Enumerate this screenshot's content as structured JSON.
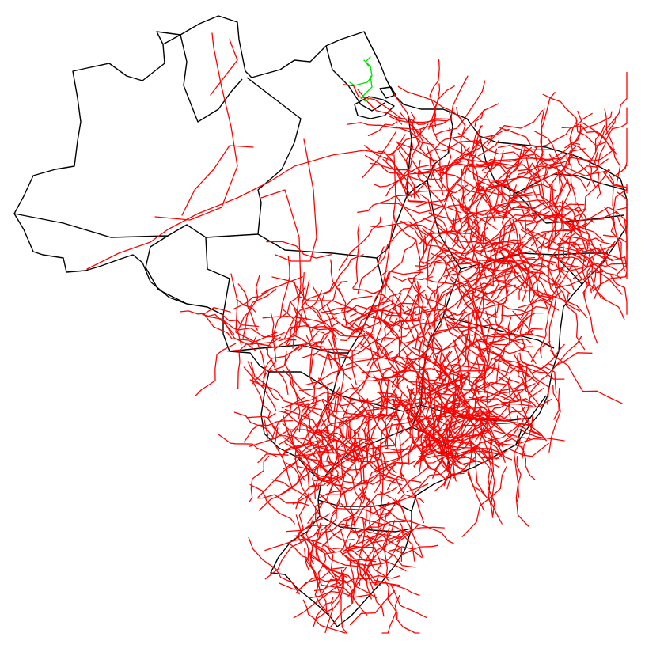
{
  "map": {
    "country": "Brazil",
    "colors": {
      "background": "#ffffff",
      "state_borders": "#000000",
      "road_network": "#ff0000",
      "highlighted_network": "#00dd00"
    }
  }
}
